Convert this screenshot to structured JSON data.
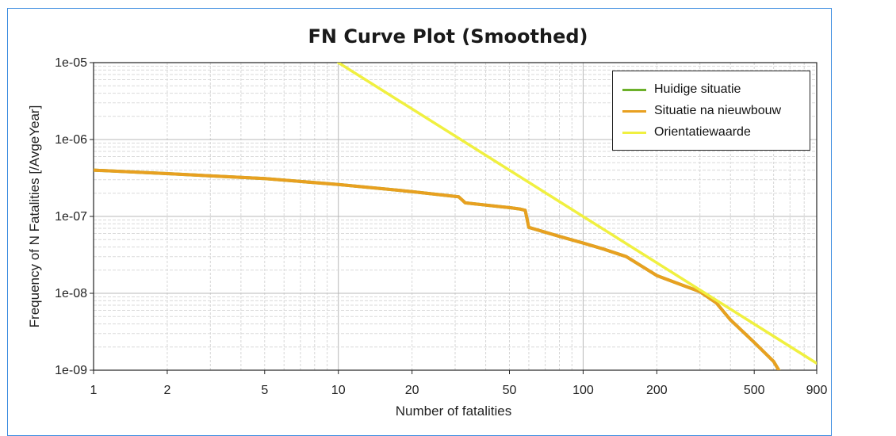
{
  "chart_data": {
    "type": "line",
    "title": "FN Curve Plot (Smoothed)",
    "xlabel": "Number of fatalities",
    "ylabel": "Frequency of N Fatalities [/AvgeYear]",
    "x_scale": "log",
    "y_scale": "log",
    "xlim": [
      1,
      900
    ],
    "ylim": [
      1e-09,
      1e-05
    ],
    "x_ticks": [
      {
        "value": 1,
        "label": "1"
      },
      {
        "value": 2,
        "label": "2"
      },
      {
        "value": 5,
        "label": "5"
      },
      {
        "value": 10,
        "label": "10"
      },
      {
        "value": 20,
        "label": "20"
      },
      {
        "value": 50,
        "label": "50"
      },
      {
        "value": 100,
        "label": "100"
      },
      {
        "value": 200,
        "label": "200"
      },
      {
        "value": 500,
        "label": "500"
      },
      {
        "value": 900,
        "label": "900"
      }
    ],
    "y_ticks": [
      {
        "value": 1e-09,
        "label": "1e-09"
      },
      {
        "value": 1e-08,
        "label": "1e-08"
      },
      {
        "value": 1e-07,
        "label": "1e-07"
      },
      {
        "value": 1e-06,
        "label": "1e-06"
      },
      {
        "value": 1e-05,
        "label": "1e-05"
      }
    ],
    "grid": true,
    "legend_position": "top-right",
    "series": [
      {
        "name": "Huidige situatie",
        "color": "#6cb02a",
        "x": [
          1,
          2,
          5,
          10,
          20,
          31,
          33,
          50,
          55,
          58,
          60,
          80,
          100,
          120,
          150,
          200,
          250,
          300,
          350,
          400,
          500,
          600,
          630
        ],
        "y": [
          4e-07,
          3.6e-07,
          3.1e-07,
          2.6e-07,
          2.1e-07,
          1.8e-07,
          1.5e-07,
          1.3e-07,
          1.25e-07,
          1.2e-07,
          7.2e-08,
          5.5e-08,
          4.5e-08,
          3.8e-08,
          3e-08,
          1.7e-08,
          1.3e-08,
          1.05e-08,
          7.5e-09,
          4.5e-09,
          2.3e-09,
          1.3e-09,
          1e-09
        ]
      },
      {
        "name": "Situatie na nieuwbouw",
        "color": "#e8a020",
        "x": [
          1,
          2,
          5,
          10,
          20,
          31,
          33,
          50,
          55,
          58,
          60,
          80,
          100,
          120,
          150,
          200,
          250,
          300,
          350,
          400,
          500,
          600,
          630
        ],
        "y": [
          4e-07,
          3.6e-07,
          3.1e-07,
          2.6e-07,
          2.1e-07,
          1.8e-07,
          1.5e-07,
          1.3e-07,
          1.25e-07,
          1.2e-07,
          7.2e-08,
          5.5e-08,
          4.5e-08,
          3.8e-08,
          3e-08,
          1.7e-08,
          1.3e-08,
          1.05e-08,
          7.5e-09,
          4.5e-09,
          2.3e-09,
          1.3e-09,
          1e-09
        ]
      },
      {
        "name": "Orientatiewaarde",
        "color": "#f0f040",
        "x": [
          10,
          900
        ],
        "y": [
          1e-05,
          1.23e-09
        ]
      }
    ]
  }
}
